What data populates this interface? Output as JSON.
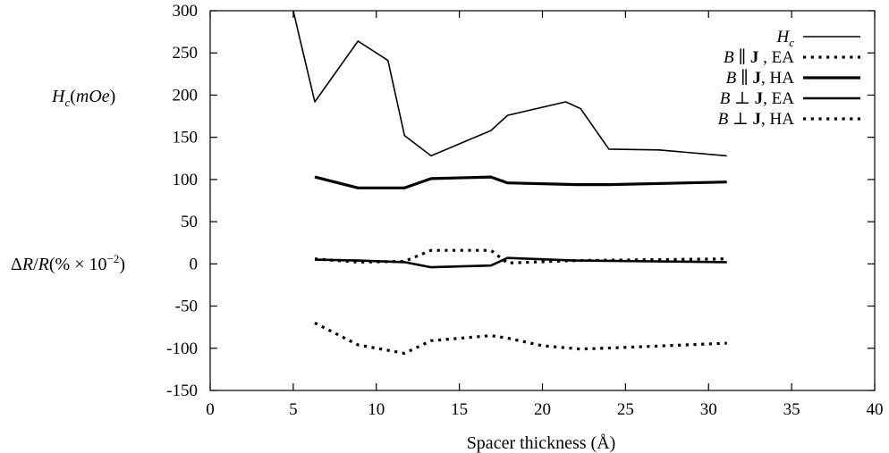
{
  "chart_data": {
    "type": "line",
    "xlabel": "Spacer thickness (Å)",
    "ylabel_top": "H_c(mOe)",
    "ylabel_bottom": "ΔR/R(% × 10^-2)",
    "xlim": [
      0,
      40
    ],
    "ylim": [
      -150,
      300
    ],
    "xticks": [
      0,
      5,
      10,
      15,
      20,
      25,
      30,
      35,
      40
    ],
    "yticks": [
      -150,
      -100,
      -50,
      0,
      50,
      100,
      150,
      200,
      250,
      300
    ],
    "legend_position": "top-right",
    "series": [
      {
        "name": "H_c",
        "style": "thin-solid",
        "x": [
          5.0,
          5.3,
          6.3,
          8.9,
          10.7,
          11.7,
          13.3,
          16.9,
          17.9,
          21.4,
          22.3,
          24.0,
          27.0,
          31.1
        ],
        "y": [
          300,
          275,
          192,
          264,
          241,
          152,
          128,
          158,
          176,
          192,
          184,
          136,
          135,
          128
        ]
      },
      {
        "name": "B ∥ J , EA",
        "style": "dotted",
        "x": [
          6.3,
          8.9,
          11.7,
          13.3,
          16.9,
          17.9,
          22.0,
          31.1
        ],
        "y": [
          6,
          2,
          3,
          16,
          16,
          1,
          4,
          6
        ]
      },
      {
        "name": "B ∥ J, HA",
        "style": "thick-solid",
        "x": [
          6.3,
          8.9,
          11.7,
          13.3,
          16.9,
          17.9,
          22.0,
          24.0,
          31.1
        ],
        "y": [
          103,
          90,
          90,
          101,
          103,
          96,
          94,
          94,
          97
        ]
      },
      {
        "name": "B ⊥ J, EA",
        "style": "medium-solid",
        "x": [
          6.3,
          8.9,
          11.7,
          13.3,
          16.9,
          17.9,
          22.0,
          31.1
        ],
        "y": [
          5,
          4,
          2,
          -4,
          -2,
          7,
          4,
          2
        ]
      },
      {
        "name": "B ⊥ J, HA",
        "style": "dotted",
        "x": [
          6.3,
          8.9,
          11.7,
          13.3,
          16.9,
          17.9,
          20.0,
          22.3,
          25.0,
          31.1
        ],
        "y": [
          -70,
          -96,
          -106,
          -91,
          -85,
          -88,
          -97,
          -101,
          -99,
          -94
        ]
      }
    ]
  }
}
